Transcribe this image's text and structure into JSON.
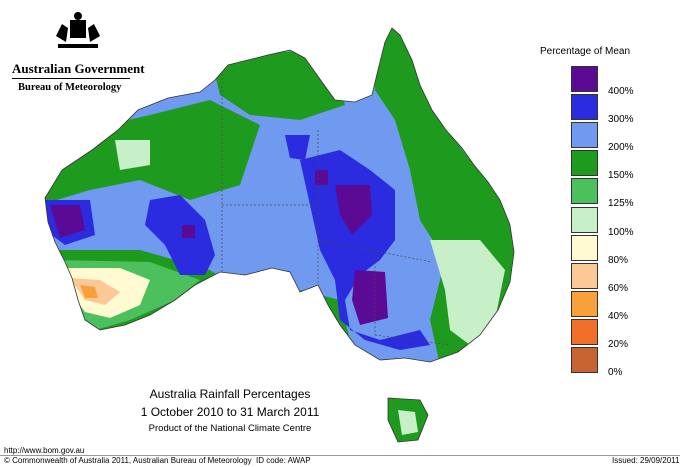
{
  "header": {
    "government": "Australian Government",
    "bureau": "Bureau of Meteorology"
  },
  "map_title": {
    "line1": "Australia Rainfall Percentages",
    "line2": "1 October 2010 to 31 March 2011",
    "line3": "Product of the National Climate Centre"
  },
  "legend": {
    "title": "Percentage of Mean",
    "items": [
      {
        "label": "400%",
        "color": "#5b0a96"
      },
      {
        "label": "300%",
        "color": "#2b2be0"
      },
      {
        "label": "200%",
        "color": "#6f9af0"
      },
      {
        "label": "150%",
        "color": "#1e9a1e"
      },
      {
        "label": "125%",
        "color": "#4cc05c"
      },
      {
        "label": "100%",
        "color": "#c8f0c8"
      },
      {
        "label": "80%",
        "color": "#fffad2"
      },
      {
        "label": "60%",
        "color": "#fcc896"
      },
      {
        "label": "40%",
        "color": "#f8a03c"
      },
      {
        "label": "20%",
        "color": "#f06e28"
      },
      {
        "label": "0%",
        "color": "#c86432"
      }
    ]
  },
  "footer": {
    "url": "http://www.bom.gov.au",
    "copyright": "© Commonwealth of Australia 2011, Australian Bureau of Meteorology",
    "id_code": "ID code: AWAP",
    "issued": "Issued: 29/09/2011"
  }
}
